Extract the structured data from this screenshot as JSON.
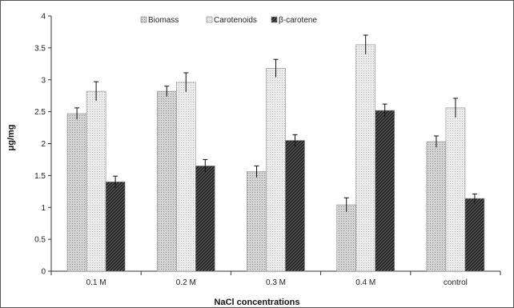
{
  "chart_data": {
    "type": "bar",
    "title": "",
    "xlabel": "NaCl concentrations",
    "ylabel": "μg/mg",
    "categories": [
      "0.1 M",
      "0.2 M",
      "0.3 M",
      "0.4 M",
      "control"
    ],
    "ylim": [
      0,
      4
    ],
    "yticks": [
      0,
      0.5,
      1,
      1.5,
      2,
      2.5,
      3,
      3.5,
      4
    ],
    "ytick_labels": [
      "0",
      "0.5",
      "1",
      "1.5",
      "2",
      "2.5",
      "3",
      "3.5",
      "4"
    ],
    "grid": false,
    "legend_position": "top-center",
    "series": [
      {
        "name": "Biomass",
        "values": [
          2.47,
          2.82,
          1.56,
          1.04,
          2.03
        ],
        "errors": [
          0.09,
          0.08,
          0.09,
          0.11,
          0.09
        ],
        "color": "#d2d2d2",
        "pattern": "dots"
      },
      {
        "name": "Carotenoids",
        "values": [
          2.82,
          2.96,
          3.18,
          3.55,
          2.56
        ],
        "errors": [
          0.15,
          0.15,
          0.14,
          0.15,
          0.15
        ],
        "color": "#e6e6e6",
        "pattern": "fine-dots"
      },
      {
        "name": "β-carotene",
        "values": [
          1.4,
          1.65,
          2.05,
          2.52,
          1.14
        ],
        "errors": [
          0.09,
          0.1,
          0.09,
          0.1,
          0.07
        ],
        "color": "#3c3c3c",
        "pattern": "diagonal"
      }
    ]
  }
}
